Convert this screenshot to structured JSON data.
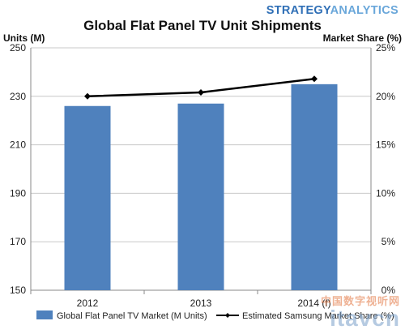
{
  "brand": {
    "part1": "STRATEGY",
    "part2": "ANALYTICS"
  },
  "watermark": {
    "line1": "中国数字视听网",
    "line2": "itavcn"
  },
  "chart_data": {
    "type": "bar",
    "title": "Global Flat Panel TV Unit Shipments",
    "categories": [
      "2012",
      "2013",
      "2014 (f)"
    ],
    "ylabel": "Units (M)",
    "y2label": "Market Share (%)",
    "ylim": [
      150,
      250
    ],
    "yticks": [
      150,
      170,
      190,
      210,
      230,
      250
    ],
    "y2lim": [
      0,
      25
    ],
    "y2ticks": [
      "0%",
      "5%",
      "10%",
      "15%",
      "20%",
      "25%"
    ],
    "series": [
      {
        "name": "Global Flat Panel TV Market (M Units)",
        "type": "bar",
        "axis": "left",
        "values": [
          226,
          227,
          235
        ],
        "color": "#4f81bd"
      },
      {
        "name": "Estimated Samsung Market Share (%)",
        "type": "line",
        "axis": "right",
        "values": [
          20.0,
          20.4,
          21.8
        ],
        "color": "#000000"
      }
    ],
    "grid": true,
    "legend": "bottom"
  }
}
